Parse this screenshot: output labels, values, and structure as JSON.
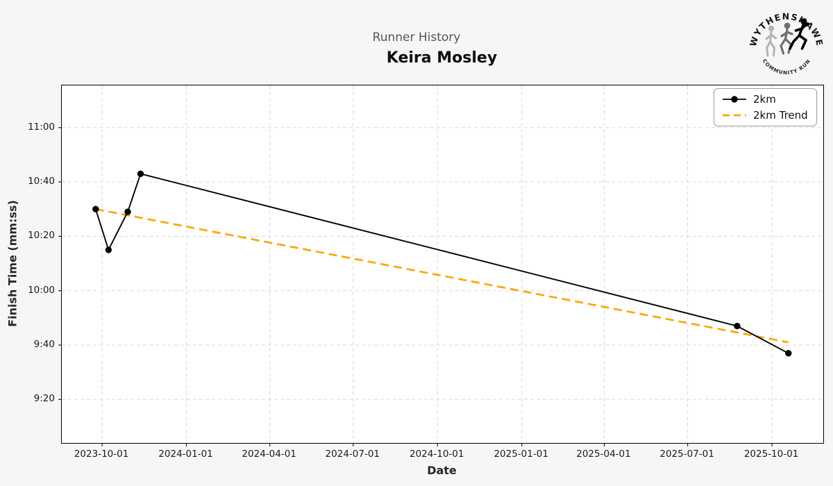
{
  "page": {
    "background": "#f6f6f6",
    "plot_background": "#ffffff",
    "grid_color": "#d9d9d9"
  },
  "logo": {
    "top_text": "WYTHENSHAWE",
    "bottom_text": "COMMUNITY RUN"
  },
  "chart_data": {
    "type": "line",
    "title": "Runner History",
    "subtitle": "Keira Mosley",
    "xlabel": "Date",
    "ylabel": "Finish Time (mm:ss)",
    "grid": true,
    "legend_position": "upper right",
    "x_ticks": [
      "2023-10-01",
      "2024-01-01",
      "2024-04-01",
      "2024-07-01",
      "2024-10-01",
      "2025-01-01",
      "2025-04-01",
      "2025-07-01",
      "2025-10-01"
    ],
    "x_range": [
      "2023-08-18",
      "2025-11-26"
    ],
    "y_ticks": [
      {
        "label": "11:00",
        "seconds": 660
      },
      {
        "label": "10:40",
        "seconds": 640
      },
      {
        "label": "10:20",
        "seconds": 620
      },
      {
        "label": "10:00",
        "seconds": 600
      },
      {
        "label": "9:40",
        "seconds": 580
      },
      {
        "label": "9:20",
        "seconds": 560
      }
    ],
    "y_range_seconds": [
      544,
      675.5
    ],
    "series": [
      {
        "name": "2km",
        "style": "solid_with_markers",
        "color": "#000000",
        "points": [
          {
            "date": "2023-09-24",
            "time": "10:30",
            "seconds": 630
          },
          {
            "date": "2023-10-08",
            "time": "10:15",
            "seconds": 615
          },
          {
            "date": "2023-10-29",
            "time": "10:29",
            "seconds": 629
          },
          {
            "date": "2023-11-12",
            "time": "10:43",
            "seconds": 643
          },
          {
            "date": "2025-08-24",
            "time": "9:47",
            "seconds": 587
          },
          {
            "date": "2025-10-19",
            "time": "9:37",
            "seconds": 577
          }
        ]
      },
      {
        "name": "2km Trend",
        "style": "dashed",
        "color": "#FFA500",
        "points": [
          {
            "date": "2023-09-24",
            "time": "10:30",
            "seconds": 630
          },
          {
            "date": "2025-10-19",
            "time": "9:41",
            "seconds": 581
          }
        ]
      }
    ]
  }
}
